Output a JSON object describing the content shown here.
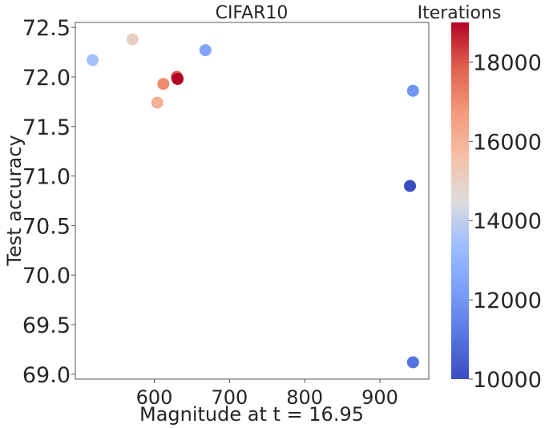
{
  "chart_data": {
    "type": "scatter",
    "title": "CIFAR10",
    "xlabel": "Magnitude at t = 16.95",
    "ylabel": "Test accuracy",
    "xlim": [
      495,
      965
    ],
    "ylim": [
      68.95,
      72.55
    ],
    "xticks": [
      600,
      700,
      800,
      900
    ],
    "yticks": [
      69.0,
      69.5,
      70.0,
      70.5,
      71.0,
      71.5,
      72.0,
      72.5
    ],
    "grid": false,
    "colorbar": {
      "label": "Iterations",
      "colormap": "coolwarm",
      "min": 10000,
      "max": 19000,
      "ticks": [
        10000,
        12000,
        14000,
        16000,
        18000
      ]
    },
    "points": [
      {
        "x": 518,
        "y": 72.17,
        "iterations": 13500
      },
      {
        "x": 571,
        "y": 72.38,
        "iterations": 15000
      },
      {
        "x": 604,
        "y": 71.74,
        "iterations": 16000
      },
      {
        "x": 612,
        "y": 71.93,
        "iterations": 17000
      },
      {
        "x": 630,
        "y": 72.0,
        "iterations": 18000
      },
      {
        "x": 631,
        "y": 71.98,
        "iterations": 19000
      },
      {
        "x": 668,
        "y": 72.27,
        "iterations": 12500
      },
      {
        "x": 940,
        "y": 70.9,
        "iterations": 10000
      },
      {
        "x": 944,
        "y": 71.86,
        "iterations": 12000
      },
      {
        "x": 944,
        "y": 69.12,
        "iterations": 11000
      }
    ]
  }
}
